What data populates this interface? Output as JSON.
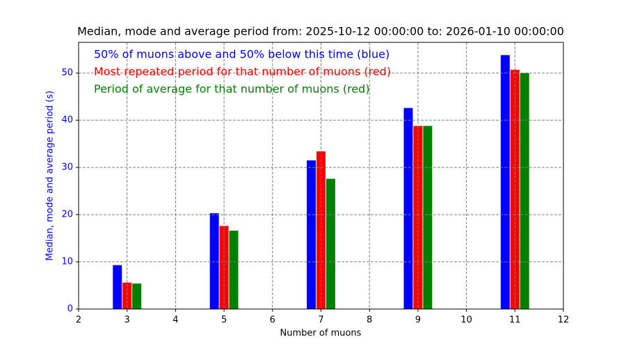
{
  "chart_data": {
    "type": "bar",
    "title": "Median, mode and average period from: 2025-10-12 00:00:00 to: 2026-01-10 00:00:00",
    "x_label": "Number of muons",
    "y_label": "Median, mode and average period (s)",
    "y_label_color": "#0000ff",
    "x": [
      3,
      5,
      7,
      9,
      11
    ],
    "series": [
      {
        "name": "50% of muons above and 50% below this time (blue)",
        "color": "#0000ff",
        "values": [
          9.3,
          20.3,
          31.5,
          42.6,
          53.8
        ]
      },
      {
        "name": "Most repeated period for that number of muons (red)",
        "color": "#ff0000",
        "values": [
          5.6,
          17.6,
          33.4,
          38.8,
          50.7
        ]
      },
      {
        "name": "Period of average for that number of muons (red)",
        "color": "#008000",
        "values": [
          5.4,
          16.6,
          27.6,
          38.8,
          50.0
        ]
      }
    ],
    "xlim": [
      2,
      12
    ],
    "xticks": [
      2,
      3,
      4,
      5,
      6,
      7,
      8,
      9,
      10,
      11,
      12
    ],
    "ylim": [
      0,
      56.5
    ],
    "yticks": [
      0,
      10,
      20,
      30,
      40,
      50
    ],
    "grid": true
  }
}
